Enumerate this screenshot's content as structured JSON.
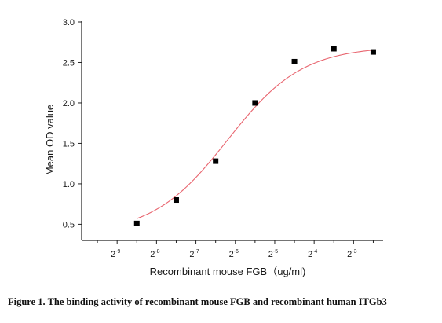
{
  "chart_data": {
    "type": "scatter",
    "title": "",
    "xlabel": "Recombinant mouse FGB（ug/ml)",
    "ylabel": "Mean OD value",
    "x_scale": "log2",
    "x_tick_exponents": [
      -9,
      -8,
      -7,
      -6,
      -5,
      -4,
      -3
    ],
    "x_tick_base": "2",
    "xlim_exponent": [
      -9.9,
      -2.25
    ],
    "ylim": [
      0.3,
      3.0
    ],
    "y_ticks": [
      "0.5",
      "1.0",
      "1.5",
      "2.0",
      "2.5",
      "3.0"
    ],
    "grid": false,
    "legend": "none",
    "series": [
      {
        "x_exponent": [
          -8.5,
          -7.5,
          -6.5,
          -5.5,
          -4.5,
          -3.5,
          -2.5
        ],
        "y": [
          0.51,
          0.8,
          1.28,
          2.0,
          2.51,
          2.67,
          2.63
        ],
        "marker": "square",
        "marker_color": "#000000"
      }
    ],
    "fit_curve": {
      "model": "4PL sigmoid",
      "bottom": 0.38,
      "top": 2.7,
      "midpoint_exponent": -6.2,
      "slope": 1.05,
      "color": "#e8646e"
    }
  },
  "caption": "Figure 1. The binding activity of recombinant mouse FGB and recombinant human ITGb3"
}
